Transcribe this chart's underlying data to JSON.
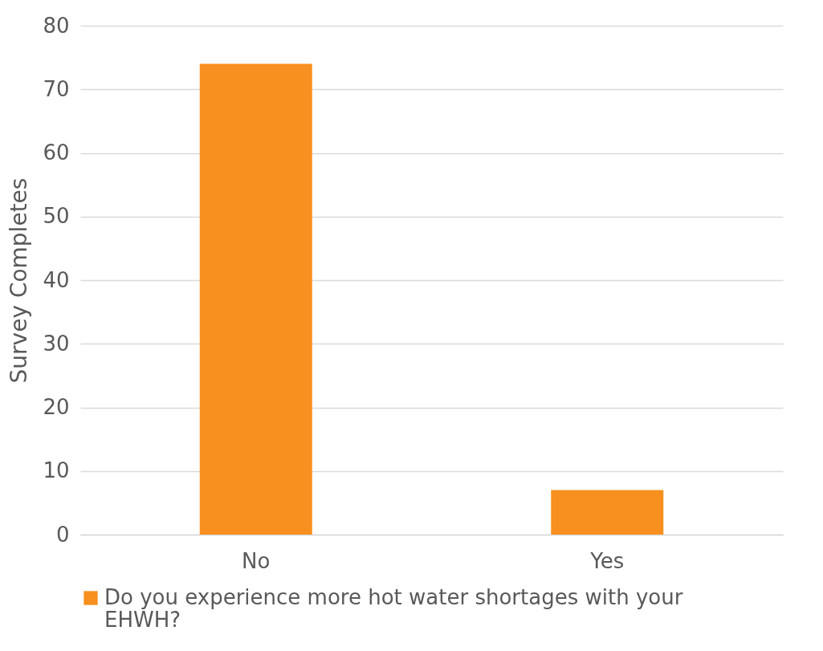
{
  "chart_data": {
    "type": "bar",
    "ylabel": "Survey Completes",
    "categories": [
      "No",
      "Yes"
    ],
    "series": [
      {
        "name": "Do you experience more hot water shortages with your EHWH?",
        "color": "#f7901e",
        "values": [
          74,
          7
        ]
      }
    ],
    "ylim": [
      0,
      80
    ],
    "yticks": [
      0,
      10,
      20,
      30,
      40,
      50,
      60,
      70,
      80
    ],
    "grid": "y",
    "legend": "bottom"
  }
}
